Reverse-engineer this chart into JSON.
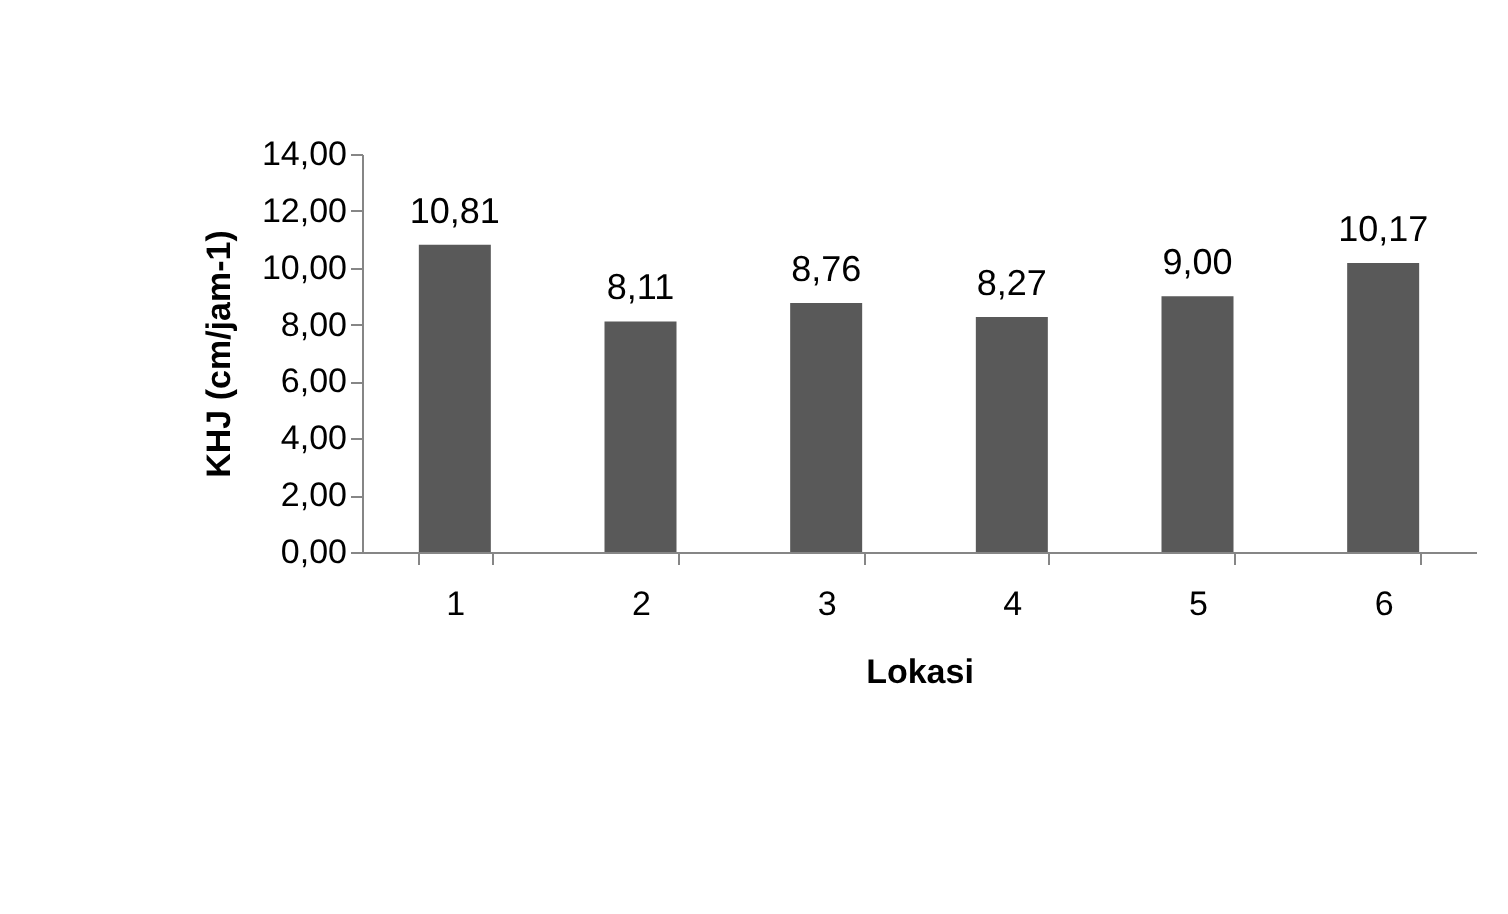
{
  "chart_data": {
    "type": "bar",
    "xlabel": "Lokasi",
    "ylabel": "KHJ (cm/jam-1)",
    "categories": [
      "1",
      "2",
      "3",
      "4",
      "5",
      "6"
    ],
    "values": [
      10.81,
      8.11,
      8.76,
      8.27,
      9.0,
      10.17
    ],
    "value_labels": [
      "10,81",
      "8,11",
      "8,76",
      "8,27",
      "9,00",
      "10,17"
    ],
    "color": "#595959",
    "ylim": [
      0,
      14
    ],
    "yticks": [
      {
        "value": 0,
        "label": "0,00"
      },
      {
        "value": 2,
        "label": "2,00"
      },
      {
        "value": 4,
        "label": "4,00"
      },
      {
        "value": 6,
        "label": "6,00"
      },
      {
        "value": 8,
        "label": "8,00"
      },
      {
        "value": 10,
        "label": "10,00"
      },
      {
        "value": 12,
        "label": "12,00"
      },
      {
        "value": 14,
        "label": "14,00"
      }
    ],
    "grid": false
  }
}
